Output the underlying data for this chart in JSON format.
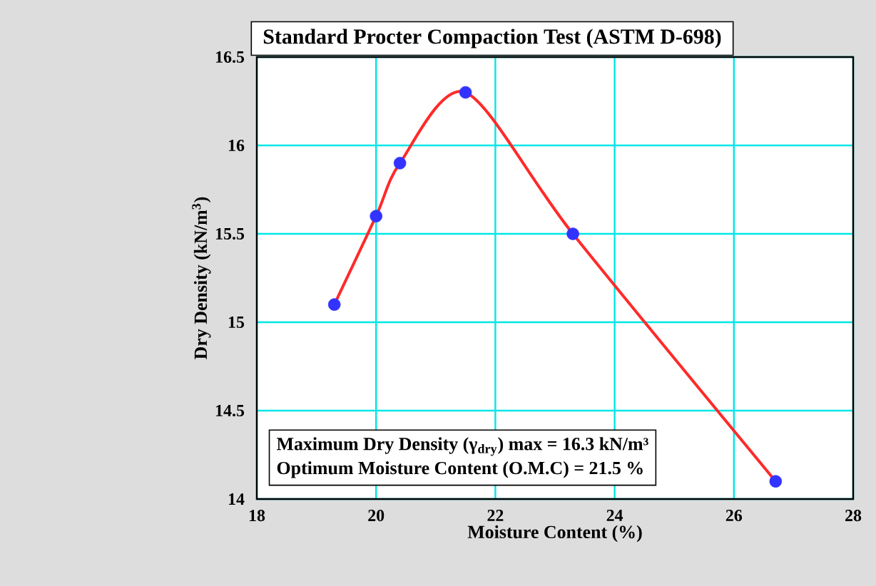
{
  "chart_data": {
    "type": "line",
    "title": "Standard Procter Compaction Test (ASTM D-698)",
    "xlabel": "Moisture Content (%)",
    "ylabel": "Dry Density (kN/m$^{3}$)",
    "x": [
      19.3,
      20,
      20.4,
      21.5,
      23.3,
      26.7
    ],
    "series": [
      {
        "color": "#ff2a2a",
        "marker": "none",
        "values": [
          15.1,
          15.6,
          15.9,
          16.3,
          15.5,
          14.1
        ]
      },
      {
        "type": "scatter",
        "color": "#3333ff",
        "marker": "circle",
        "values": [
          15.1,
          15.6,
          15.9,
          16.3,
          15.5,
          14.1
        ]
      }
    ],
    "xlim": [
      18,
      28
    ],
    "ylim": [
      14,
      16.5
    ],
    "xticks": [
      18,
      20,
      22,
      24,
      26,
      28
    ],
    "yticks": [
      14,
      14.5,
      15,
      15.5,
      16,
      16.5
    ],
    "grid": true,
    "annotations": [
      "Maximum Dry Density (γ$_{dry}$) max = 16.3 kN/m³",
      "Optimum Moisture Content (O.M.C) = 21.5 %"
    ]
  }
}
